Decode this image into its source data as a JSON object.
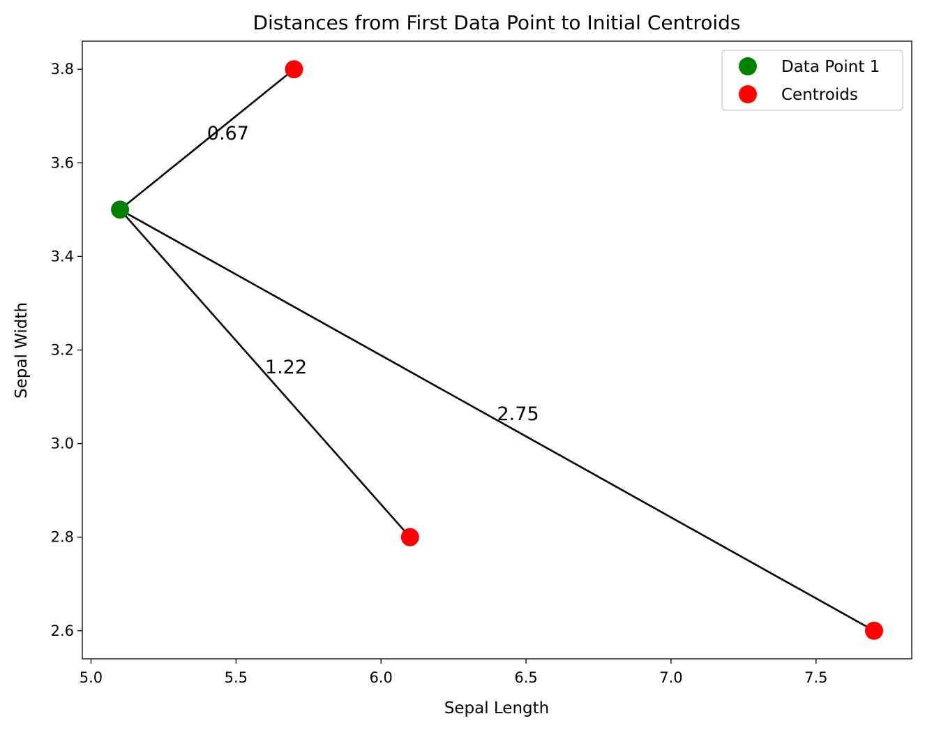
{
  "chart_data": {
    "type": "scatter",
    "title": "Distances from First Data Point to Initial Centroids",
    "xlabel": "Sepal Length",
    "ylabel": "Sepal Width",
    "xlim": [
      4.97,
      7.83
    ],
    "ylim": [
      2.54,
      3.86
    ],
    "xticks": [
      {
        "value": 5.0,
        "label": "5.0"
      },
      {
        "value": 5.5,
        "label": "5.5"
      },
      {
        "value": 6.0,
        "label": "6.0"
      },
      {
        "value": 6.5,
        "label": "6.5"
      },
      {
        "value": 7.0,
        "label": "7.0"
      },
      {
        "value": 7.5,
        "label": "7.5"
      }
    ],
    "yticks": [
      {
        "value": 2.6,
        "label": "2.6"
      },
      {
        "value": 2.8,
        "label": "2.8"
      },
      {
        "value": 3.0,
        "label": "3.0"
      },
      {
        "value": 3.2,
        "label": "3.2"
      },
      {
        "value": 3.4,
        "label": "3.4"
      },
      {
        "value": 3.6,
        "label": "3.6"
      },
      {
        "value": 3.8,
        "label": "3.8"
      }
    ],
    "grid": false,
    "legend_position": "top-right",
    "series": [
      {
        "name": "Data Point 1",
        "color": "#008000",
        "points": [
          {
            "x": 5.1,
            "y": 3.5
          }
        ]
      },
      {
        "name": "Centroids",
        "color": "#ff0000",
        "points": [
          {
            "x": 5.7,
            "y": 3.8
          },
          {
            "x": 6.1,
            "y": 2.8
          },
          {
            "x": 7.7,
            "y": 2.6
          }
        ]
      }
    ],
    "distance_lines": [
      {
        "to_x": 5.7,
        "to_y": 3.8,
        "label": "0.67",
        "label_x": 5.4,
        "label_y": 3.65
      },
      {
        "to_x": 6.1,
        "to_y": 2.8,
        "label": "1.22",
        "label_x": 5.6,
        "label_y": 3.15
      },
      {
        "to_x": 7.7,
        "to_y": 2.6,
        "label": "2.75",
        "label_x": 6.4,
        "label_y": 3.05
      }
    ],
    "line_color": "#000000"
  }
}
